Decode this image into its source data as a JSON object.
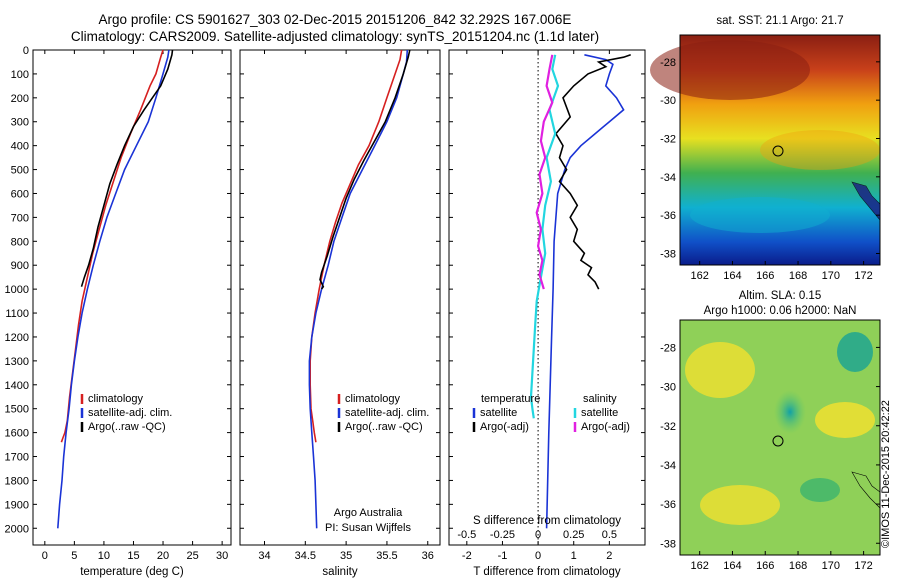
{
  "header": {
    "title_line1": "Argo profile: CS 5901627_303 02-Dec-2015 20151206_842 32.292S 167.006E",
    "title_line2": "Climatology: CARS2009. Satellite-adjusted climatology: synTS_20151204.nc (1.1d later)"
  },
  "colors": {
    "climatology": "#d62020",
    "satellite": "#1a33d6",
    "argo": "#000000",
    "satellite_salinity": "#22d6e0",
    "argo_salinity": "#e020e0"
  },
  "chart_data": [
    {
      "type": "line",
      "id": "temperature",
      "xlabel": "temperature (deg C)",
      "ylim": [
        0,
        2070
      ],
      "xlim": [
        -2,
        31.5
      ],
      "xticks": [
        0,
        5,
        10,
        15,
        20,
        25,
        30
      ],
      "yticks": [
        0,
        100,
        200,
        300,
        400,
        500,
        600,
        700,
        800,
        900,
        1000,
        1100,
        1200,
        1300,
        1400,
        1500,
        1600,
        1700,
        1800,
        1900,
        2000
      ],
      "y_reversed": true,
      "legend": {
        "placement": "lower-center",
        "entries": [
          "climatology",
          "satellite-adj. clim.",
          "Argo(..raw -QC)"
        ]
      },
      "series": [
        {
          "name": "climatology",
          "color": "#d62020",
          "x": [
            20.0,
            19.6,
            18.8,
            17.8,
            16.2,
            14.5,
            12.9,
            11.6,
            10.3,
            9.2,
            8.1,
            7.2,
            6.3,
            5.7,
            5.2,
            4.7,
            4.2,
            3.8,
            3.4,
            3.1,
            2.8
          ],
          "y": [
            0,
            30,
            100,
            150,
            250,
            350,
            450,
            550,
            650,
            750,
            850,
            950,
            1050,
            1150,
            1250,
            1350,
            1450,
            1550,
            1600,
            1620,
            1640
          ]
        },
        {
          "name": "satellite-adj. clim.",
          "color": "#1a33d6",
          "x": [
            21.0,
            20.8,
            20.0,
            18.8,
            17.5,
            15.5,
            13.5,
            12.0,
            10.5,
            9.3,
            8.2,
            7.2,
            6.3,
            5.6,
            5.0,
            4.5,
            4.1,
            3.6,
            3.2,
            2.9,
            2.5,
            2.2
          ],
          "y": [
            0,
            30,
            100,
            200,
            300,
            400,
            500,
            600,
            700,
            800,
            900,
            1000,
            1100,
            1200,
            1300,
            1400,
            1500,
            1600,
            1700,
            1800,
            1900,
            2000
          ]
        },
        {
          "name": "Argo(..raw -QC)",
          "color": "#000000",
          "x": [
            21.6,
            21.5,
            20.8,
            19.6,
            18.2,
            16.8,
            15.0,
            13.5,
            12.2,
            11.0,
            10.0,
            9.0,
            8.2,
            7.4,
            6.7,
            6.2
          ],
          "y": [
            0,
            20,
            80,
            150,
            200,
            250,
            320,
            400,
            480,
            560,
            650,
            740,
            830,
            900,
            950,
            990
          ]
        }
      ]
    },
    {
      "type": "line",
      "id": "salinity",
      "xlabel": "salinity",
      "ylim": [
        0,
        2070
      ],
      "xlim": [
        33.7,
        36.15
      ],
      "xticks": [
        34,
        34.5,
        35,
        35.5,
        36
      ],
      "y_reversed": true,
      "legend": {
        "placement": "lower-center",
        "entries": [
          "climatology",
          "satellite-adj. clim.",
          "Argo(..raw -QC)"
        ]
      },
      "annotations": [
        "Argo Australia",
        "PI: Susan Wijffels"
      ],
      "series": [
        {
          "name": "climatology",
          "color": "#d62020",
          "x": [
            35.68,
            35.66,
            35.6,
            35.5,
            35.4,
            35.28,
            35.15,
            35.05,
            34.95,
            34.87,
            34.8,
            34.73,
            34.67,
            34.62,
            34.58,
            34.56,
            34.56,
            34.57,
            34.59,
            34.61,
            34.62,
            34.63
          ],
          "y": [
            0,
            40,
            100,
            200,
            300,
            400,
            480,
            560,
            640,
            720,
            800,
            900,
            1000,
            1100,
            1200,
            1300,
            1400,
            1500,
            1550,
            1600,
            1620,
            1640
          ]
        },
        {
          "name": "satellite-adj. clim.",
          "color": "#1a33d6",
          "x": [
            35.75,
            35.74,
            35.7,
            35.62,
            35.5,
            35.35,
            35.2,
            35.05,
            34.95,
            34.85,
            34.78,
            34.7,
            34.63,
            34.58,
            34.55,
            34.55,
            34.56,
            34.58,
            34.6,
            34.62,
            34.63,
            34.64
          ],
          "y": [
            0,
            50,
            100,
            200,
            300,
            400,
            500,
            600,
            700,
            800,
            900,
            1000,
            1100,
            1200,
            1300,
            1400,
            1500,
            1600,
            1700,
            1800,
            1900,
            2000
          ]
        },
        {
          "name": "Argo(..raw -QC)",
          "color": "#000000",
          "x": [
            35.78,
            35.76,
            35.7,
            35.6,
            35.48,
            35.35,
            35.22,
            35.1,
            35.0,
            34.92,
            34.84,
            34.77,
            34.7,
            34.68,
            34.72,
            34.7
          ],
          "y": [
            0,
            30,
            100,
            200,
            300,
            380,
            460,
            540,
            620,
            700,
            780,
            860,
            930,
            960,
            990,
            1000
          ]
        }
      ]
    },
    {
      "type": "line",
      "id": "difference",
      "xlabel_top": "S difference from climatology",
      "xlabel": "T difference from climatology",
      "ylim": [
        0,
        2070
      ],
      "t_xlim": [
        -2.5,
        3.0
      ],
      "t_xticks": [
        -2,
        -1,
        0,
        1,
        2
      ],
      "s_xticks": [
        -0.5,
        -0.25,
        0,
        0.25,
        0.5
      ],
      "s_xtick_labels": [
        "-0.5",
        "-0.25",
        "0",
        "0.25",
        "0.5"
      ],
      "s_per_t": 0.25,
      "y_reversed": true,
      "legend": {
        "placement": "lower-center",
        "headers": [
          "temperature",
          "salinity"
        ],
        "entries": [
          "satellite",
          "Argo(-adj)",
          "satellite",
          "Argo(-adj)"
        ]
      },
      "series": [
        {
          "name": "temperature satellite",
          "color": "#1a33d6",
          "axis": "T",
          "x": [
            1.3,
            1.9,
            2.1,
            2.0,
            1.9,
            2.2,
            2.4,
            2.0,
            1.6,
            1.2,
            0.9,
            0.75,
            0.55,
            0.45,
            0.42,
            0.38,
            0.34,
            0.3,
            0.27,
            0.24
          ],
          "y": [
            20,
            40,
            60,
            100,
            150,
            200,
            250,
            300,
            350,
            400,
            450,
            500,
            600,
            800,
            1000,
            1200,
            1400,
            1600,
            1800,
            2000
          ]
        },
        {
          "name": "temperature Argo(-adj)",
          "color": "#000000",
          "axis": "T",
          "x": [
            2.6,
            2.4,
            1.7,
            1.9,
            1.4,
            1.0,
            0.7,
            0.9,
            0.5,
            0.7,
            0.6,
            0.8,
            0.6,
            0.9,
            1.1,
            0.9,
            1.1,
            1.0,
            1.3,
            1.2,
            1.5,
            1.4,
            1.6,
            1.7
          ],
          "y": [
            20,
            30,
            50,
            70,
            100,
            150,
            200,
            280,
            350,
            400,
            450,
            500,
            550,
            600,
            650,
            700,
            750,
            800,
            850,
            880,
            910,
            940,
            970,
            1000
          ]
        },
        {
          "name": "salinity satellite",
          "color": "#22d6e0",
          "axis": "S",
          "x": [
            0.12,
            0.1,
            0.14,
            0.08,
            0.12,
            0.06,
            0.09,
            0.05,
            0.03,
            0.05,
            0.02,
            -0.01,
            -0.02,
            -0.03,
            -0.04,
            -0.05,
            -0.04,
            -0.03
          ],
          "y": [
            20,
            80,
            150,
            250,
            350,
            450,
            550,
            650,
            750,
            850,
            950,
            1050,
            1150,
            1250,
            1350,
            1450,
            1500,
            1540
          ]
        },
        {
          "name": "salinity Argo(-adj)",
          "color": "#e020e0",
          "axis": "S",
          "x": [
            0.1,
            0.08,
            0.06,
            0.1,
            0.04,
            0.02,
            0.05,
            0.01,
            0.03,
            -0.01,
            0.02,
            0.0,
            0.03,
            0.01,
            0.04
          ],
          "y": [
            20,
            80,
            150,
            220,
            300,
            380,
            450,
            520,
            600,
            680,
            750,
            820,
            880,
            940,
            1000
          ]
        }
      ]
    },
    {
      "type": "heatmap",
      "id": "sst_map",
      "title": "sat. SST: 21.1 Argo: 21.7",
      "xticks": [
        162,
        164,
        166,
        168,
        170,
        172
      ],
      "yticks": [
        -28,
        -30,
        -32,
        -34,
        -36,
        -38
      ],
      "xlim": [
        160.8,
        173.0
      ],
      "ylim": [
        -38.6,
        -26.6
      ],
      "argo_position": [
        167.006,
        -32.292
      ]
    },
    {
      "type": "heatmap",
      "id": "sla_map",
      "title": "Altim. SLA: 0.15",
      "subtitle": "Argo h1000: 0.06 h2000: NaN",
      "xticks": [
        162,
        164,
        166,
        168,
        170,
        172
      ],
      "yticks": [
        -28,
        -30,
        -32,
        -34,
        -36,
        -38
      ],
      "xlim": [
        160.8,
        173.0
      ],
      "ylim": [
        -38.6,
        -26.6
      ],
      "argo_position": [
        167.006,
        -32.292
      ]
    }
  ],
  "footer": {
    "imos_stamp": "©IMOS 11-Dec-2015 20:42:22"
  }
}
